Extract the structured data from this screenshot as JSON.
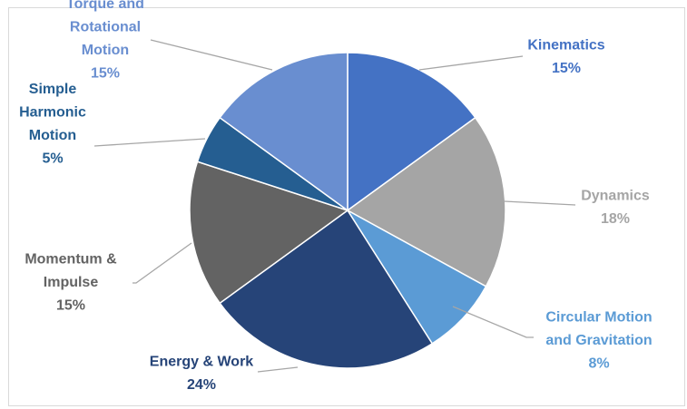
{
  "chart_data": {
    "type": "pie",
    "title": "",
    "legend": "none",
    "slices": [
      {
        "name": "Kinematics",
        "value": 15,
        "label_lines": [
          "Kinematics"
        ],
        "percent_label": "15%",
        "color": "#4472c4",
        "label_color": "#4472c4"
      },
      {
        "name": "Dynamics",
        "value": 18,
        "label_lines": [
          "Dynamics"
        ],
        "percent_label": "18%",
        "color": "#a5a5a5",
        "label_color": "#a5a5a5"
      },
      {
        "name": "Circular Motion and Gravitation",
        "value": 8,
        "label_lines": [
          "Circular Motion",
          "and Gravitation"
        ],
        "percent_label": "8%",
        "color": "#5b9bd5",
        "label_color": "#5b9bd5"
      },
      {
        "name": "Energy & Work",
        "value": 24,
        "label_lines": [
          "Energy & Work"
        ],
        "percent_label": "24%",
        "color": "#264478",
        "label_color": "#264478"
      },
      {
        "name": "Momentum & Impulse",
        "value": 15,
        "label_lines": [
          "Momentum &",
          "Impulse"
        ],
        "percent_label": "15%",
        "color": "#636363",
        "label_color": "#636363"
      },
      {
        "name": "Simple Harmonic Motion",
        "value": 5,
        "label_lines": [
          "Simple",
          "Harmonic",
          "Motion"
        ],
        "percent_label": "5%",
        "color": "#255e91",
        "label_color": "#255e91"
      },
      {
        "name": "Torque and Rotational Motion",
        "value": 15,
        "label_lines": [
          "Torque and",
          "Rotational",
          "Motion"
        ],
        "percent_label": "15%",
        "color": "#698ed0",
        "label_color": "#698ed0"
      }
    ]
  }
}
